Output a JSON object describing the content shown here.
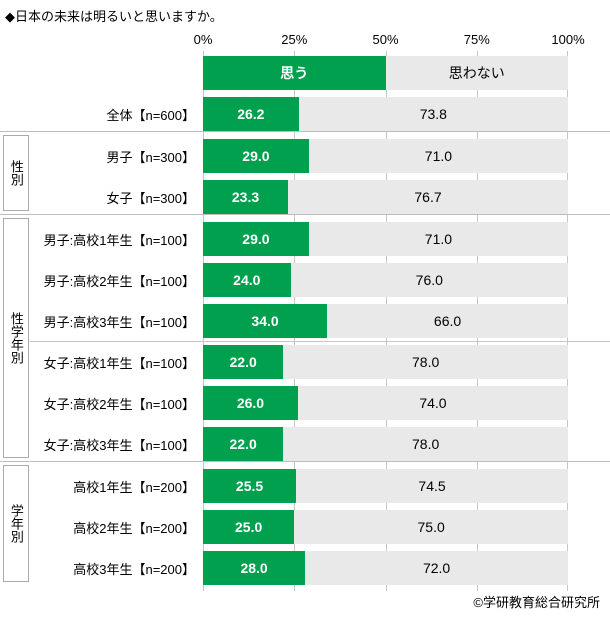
{
  "title": "◆日本の未来は明るいと思いますか。",
  "copyright": "©学研教育総合研究所",
  "colors": {
    "yes_bar": "#00A04E",
    "no_bar": "#E9E9E9",
    "grid": "#C6C6C6",
    "box_border": "#ABABAB"
  },
  "chart_data": {
    "type": "bar",
    "orientation": "horizontal",
    "stacked": true,
    "unit": "%",
    "title": "◆日本の未来は明るいと思いますか。",
    "xlim": [
      0,
      100
    ],
    "axis_ticks": [
      "0%",
      "25%",
      "50%",
      "75%",
      "100%"
    ],
    "series_labels": {
      "yes": "思う",
      "no": "思わない"
    },
    "groups": [
      {
        "name": "",
        "separator_above": false,
        "rows": [
          {
            "label": "全体【n=600】",
            "yes": 26.2,
            "no": 73.8
          }
        ]
      },
      {
        "name": "性別",
        "separator_above": true,
        "rows": [
          {
            "label": "男子【n=300】",
            "yes": 29.0,
            "no": 71.0
          },
          {
            "label": "女子【n=300】",
            "yes": 23.3,
            "no": 76.7
          }
        ]
      },
      {
        "name": "性学年別",
        "separator_above": true,
        "divider_before_row": 3,
        "rows": [
          {
            "label": "男子:高校1年生【n=100】",
            "yes": 29.0,
            "no": 71.0
          },
          {
            "label": "男子:高校2年生【n=100】",
            "yes": 24.0,
            "no": 76.0
          },
          {
            "label": "男子:高校3年生【n=100】",
            "yes": 34.0,
            "no": 66.0
          },
          {
            "label": "女子:高校1年生【n=100】",
            "yes": 22.0,
            "no": 78.0
          },
          {
            "label": "女子:高校2年生【n=100】",
            "yes": 26.0,
            "no": 74.0
          },
          {
            "label": "女子:高校3年生【n=100】",
            "yes": 22.0,
            "no": 78.0
          }
        ]
      },
      {
        "name": "学年別",
        "separator_above": true,
        "rows": [
          {
            "label": "高校1年生【n=200】",
            "yes": 25.5,
            "no": 74.5
          },
          {
            "label": "高校2年生【n=200】",
            "yes": 25.0,
            "no": 75.0
          },
          {
            "label": "高校3年生【n=200】",
            "yes": 28.0,
            "no": 72.0
          }
        ]
      }
    ]
  }
}
